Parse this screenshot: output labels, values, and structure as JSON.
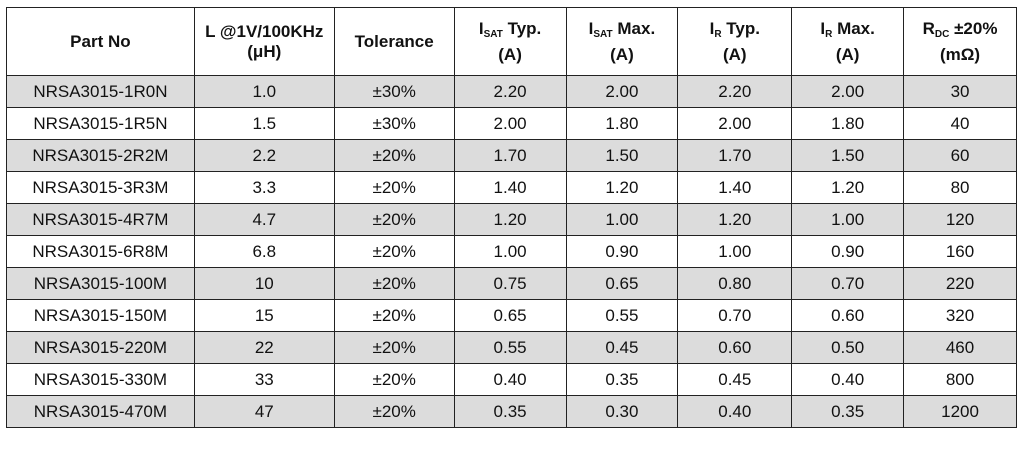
{
  "table": {
    "headers": {
      "part_no": "Part No",
      "inductance_line1": "L @1V/100KHz",
      "inductance_line2": "(μH)",
      "tolerance": "Tolerance",
      "isat_typ_main": "I",
      "isat_typ_sub": "SAT",
      "isat_typ_suffix": " Typ.",
      "isat_typ_unit": "(A)",
      "isat_max_main": "I",
      "isat_max_sub": "SAT",
      "isat_max_suffix": " Max.",
      "isat_max_unit": "(A)",
      "ir_typ_main": "I",
      "ir_typ_sub": "R",
      "ir_typ_suffix": " Typ.",
      "ir_typ_unit": "(A)",
      "ir_max_main": "I",
      "ir_max_sub": "R",
      "ir_max_suffix": " Max.",
      "ir_max_unit": "(A)",
      "rdc_main": "R",
      "rdc_sub": "DC",
      "rdc_suffix": " ±20%",
      "rdc_unit": "(mΩ)"
    },
    "rows": [
      [
        "NRSA3015-1R0N",
        "1.0",
        "±30%",
        "2.20",
        "2.00",
        "2.20",
        "2.00",
        "30"
      ],
      [
        "NRSA3015-1R5N",
        "1.5",
        "±30%",
        "2.00",
        "1.80",
        "2.00",
        "1.80",
        "40"
      ],
      [
        "NRSA3015-2R2M",
        "2.2",
        "±20%",
        "1.70",
        "1.50",
        "1.70",
        "1.50",
        "60"
      ],
      [
        "NRSA3015-3R3M",
        "3.3",
        "±20%",
        "1.40",
        "1.20",
        "1.40",
        "1.20",
        "80"
      ],
      [
        "NRSA3015-4R7M",
        "4.7",
        "±20%",
        "1.20",
        "1.00",
        "1.20",
        "1.00",
        "120"
      ],
      [
        "NRSA3015-6R8M",
        "6.8",
        "±20%",
        "1.00",
        "0.90",
        "1.00",
        "0.90",
        "160"
      ],
      [
        "NRSA3015-100M",
        "10",
        "±20%",
        "0.75",
        "0.65",
        "0.80",
        "0.70",
        "220"
      ],
      [
        "NRSA3015-150M",
        "15",
        "±20%",
        "0.65",
        "0.55",
        "0.70",
        "0.60",
        "320"
      ],
      [
        "NRSA3015-220M",
        "22",
        "±20%",
        "0.55",
        "0.45",
        "0.60",
        "0.50",
        "460"
      ],
      [
        "NRSA3015-330M",
        "33",
        "±20%",
        "0.40",
        "0.35",
        "0.45",
        "0.40",
        "800"
      ],
      [
        "NRSA3015-470M",
        "47",
        "±20%",
        "0.35",
        "0.30",
        "0.40",
        "0.35",
        "1200"
      ]
    ],
    "shading_color": "#dcdcdc"
  }
}
